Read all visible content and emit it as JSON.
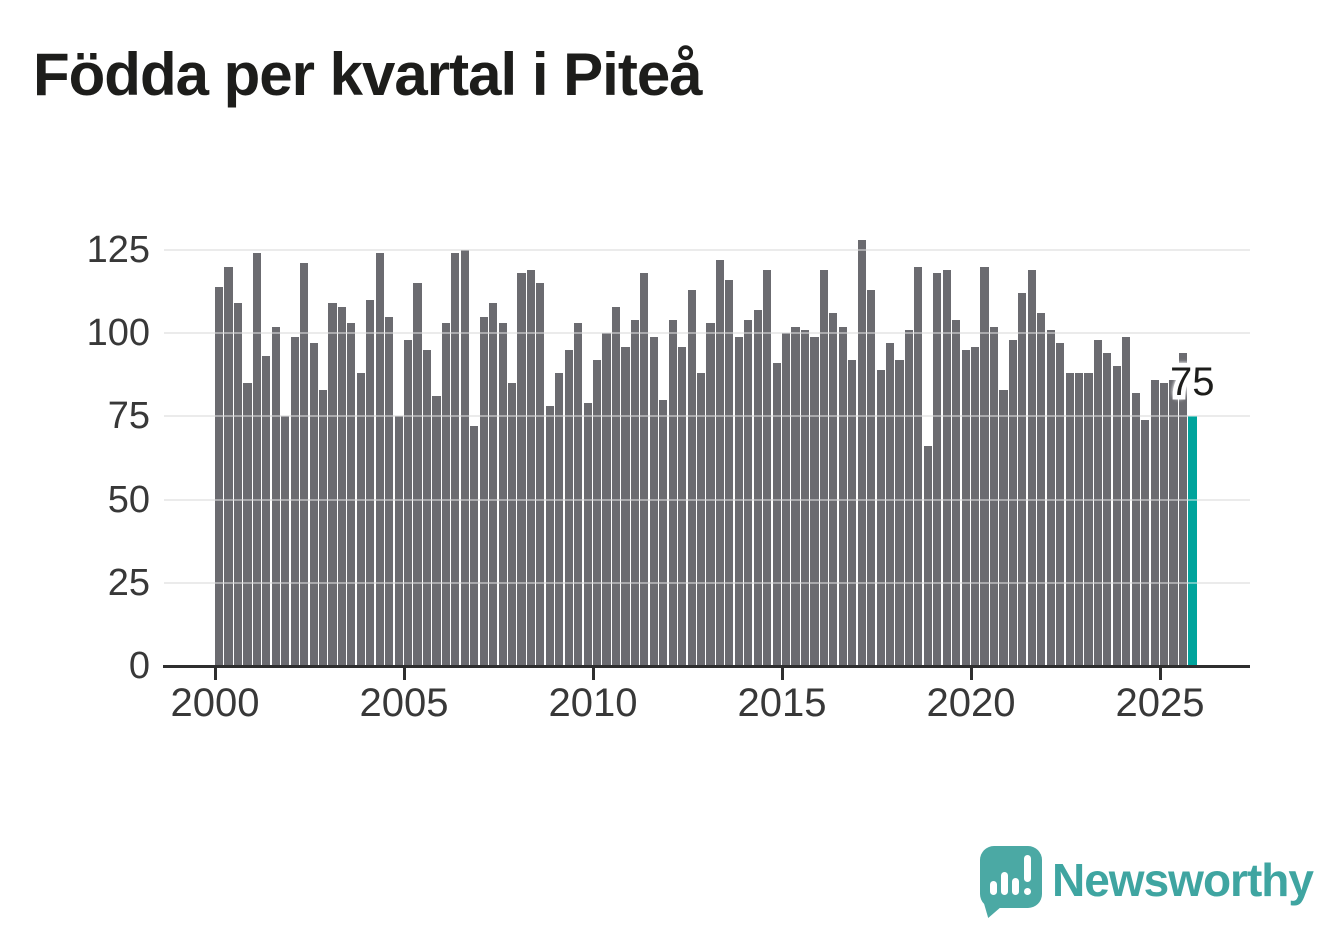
{
  "title": "Födda per kvartal i Piteå",
  "annotation": {
    "latest_value_label": "75"
  },
  "branding": {
    "name": "Newsworthy",
    "logo_color": "#4ba9a4",
    "text_color": "#3fa5a1"
  },
  "chart_data": {
    "type": "bar",
    "title": "Födda per kvartal i Piteå",
    "xlabel": "",
    "ylabel": "",
    "x_tick_labels": [
      "2000",
      "2005",
      "2010",
      "2015",
      "2020",
      "2025"
    ],
    "y_tick_labels": [
      "0",
      "25",
      "50",
      "75",
      "100",
      "125"
    ],
    "y_ticks": [
      0,
      25,
      50,
      75,
      100,
      125
    ],
    "ylim": [
      0,
      131
    ],
    "grid": true,
    "bar_color": "#6b6b70",
    "highlight_color": "#00a49c",
    "highlight_index": 103,
    "highlight_value": 75,
    "categories": [
      "2000Q1",
      "2000Q2",
      "2000Q3",
      "2000Q4",
      "2001Q1",
      "2001Q2",
      "2001Q3",
      "2001Q4",
      "2002Q1",
      "2002Q2",
      "2002Q3",
      "2002Q4",
      "2003Q1",
      "2003Q2",
      "2003Q3",
      "2003Q4",
      "2004Q1",
      "2004Q2",
      "2004Q3",
      "2004Q4",
      "2005Q1",
      "2005Q2",
      "2005Q3",
      "2005Q4",
      "2006Q1",
      "2006Q2",
      "2006Q3",
      "2006Q4",
      "2007Q1",
      "2007Q2",
      "2007Q3",
      "2007Q4",
      "2008Q1",
      "2008Q2",
      "2008Q3",
      "2008Q4",
      "2009Q1",
      "2009Q2",
      "2009Q3",
      "2009Q4",
      "2010Q1",
      "2010Q2",
      "2010Q3",
      "2010Q4",
      "2011Q1",
      "2011Q2",
      "2011Q3",
      "2011Q4",
      "2012Q1",
      "2012Q2",
      "2012Q3",
      "2012Q4",
      "2013Q1",
      "2013Q2",
      "2013Q3",
      "2013Q4",
      "2014Q1",
      "2014Q2",
      "2014Q3",
      "2014Q4",
      "2015Q1",
      "2015Q2",
      "2015Q3",
      "2015Q4",
      "2016Q1",
      "2016Q2",
      "2016Q3",
      "2016Q4",
      "2017Q1",
      "2017Q2",
      "2017Q3",
      "2017Q4",
      "2018Q1",
      "2018Q2",
      "2018Q3",
      "2018Q4",
      "2019Q1",
      "2019Q2",
      "2019Q3",
      "2019Q4",
      "2020Q1",
      "2020Q2",
      "2020Q3",
      "2020Q4",
      "2021Q1",
      "2021Q2",
      "2021Q3",
      "2021Q4",
      "2022Q1",
      "2022Q2",
      "2022Q3",
      "2022Q4",
      "2023Q1",
      "2023Q2",
      "2023Q3",
      "2023Q4",
      "2024Q1",
      "2024Q2",
      "2024Q3",
      "2024Q4",
      "2025Q1",
      "2025Q2",
      "2025Q3",
      "2025Q4"
    ],
    "values": [
      114,
      120,
      109,
      85,
      124,
      93,
      102,
      75,
      99,
      121,
      97,
      83,
      109,
      108,
      103,
      88,
      110,
      124,
      105,
      75,
      98,
      115,
      95,
      81,
      103,
      124,
      125,
      72,
      105,
      109,
      103,
      85,
      118,
      119,
      115,
      78,
      88,
      95,
      103,
      79,
      92,
      100,
      108,
      96,
      104,
      118,
      99,
      80,
      104,
      96,
      113,
      88,
      103,
      122,
      116,
      99,
      104,
      107,
      119,
      91,
      100,
      102,
      101,
      99,
      119,
      106,
      102,
      92,
      128,
      113,
      89,
      97,
      92,
      101,
      120,
      66,
      118,
      119,
      104,
      95,
      96,
      120,
      102,
      83,
      98,
      112,
      119,
      106,
      101,
      97,
      88,
      88,
      88,
      98,
      94,
      90,
      99,
      82,
      74,
      86,
      85,
      86,
      94,
      75
    ]
  }
}
